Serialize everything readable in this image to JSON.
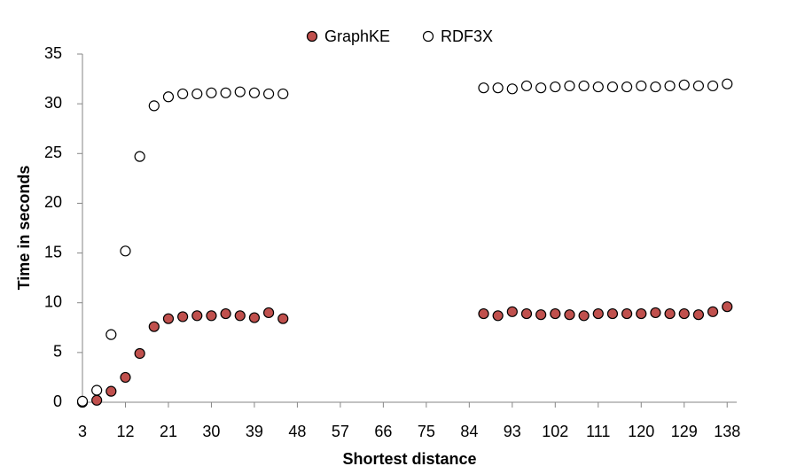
{
  "chart_data": {
    "type": "scatter",
    "xlabel": "Shortest distance",
    "ylabel": "Time in seconds",
    "x": [
      3,
      6,
      9,
      12,
      15,
      18,
      21,
      24,
      27,
      30,
      33,
      36,
      39,
      42,
      45,
      87,
      90,
      93,
      96,
      99,
      102,
      105,
      108,
      111,
      114,
      117,
      120,
      123,
      126,
      129,
      132,
      135,
      138
    ],
    "series": [
      {
        "name": "GraphKE",
        "color": "#c0504d",
        "values": [
          0,
          0.2,
          1.1,
          2.5,
          4.9,
          7.6,
          8.4,
          8.6,
          8.7,
          8.7,
          8.9,
          8.7,
          8.5,
          9.0,
          8.4,
          8.9,
          8.7,
          9.1,
          8.9,
          8.8,
          8.9,
          8.8,
          8.7,
          8.9,
          8.9,
          8.9,
          8.9,
          9.0,
          8.9,
          8.9,
          8.8,
          9.1,
          9.6
        ]
      },
      {
        "name": "RDF3X",
        "color": "#ffffff",
        "values": [
          0.1,
          1.2,
          6.8,
          15.2,
          24.7,
          29.8,
          30.7,
          31.0,
          31.0,
          31.1,
          31.1,
          31.2,
          31.1,
          31.0,
          31.0,
          31.6,
          31.6,
          31.5,
          31.8,
          31.6,
          31.7,
          31.8,
          31.8,
          31.7,
          31.7,
          31.7,
          31.8,
          31.7,
          31.8,
          31.9,
          31.8,
          31.8,
          32.0
        ]
      }
    ],
    "marker_edge_color": "#000000",
    "xlim": [
      3,
      140
    ],
    "xticks": [
      3,
      12,
      21,
      30,
      39,
      48,
      57,
      66,
      75,
      84,
      93,
      102,
      111,
      120,
      129,
      138
    ],
    "ylim": [
      0,
      35
    ],
    "yticks": [
      0,
      5,
      10,
      15,
      20,
      25,
      30,
      35
    ],
    "grid": false,
    "legend": "top"
  }
}
